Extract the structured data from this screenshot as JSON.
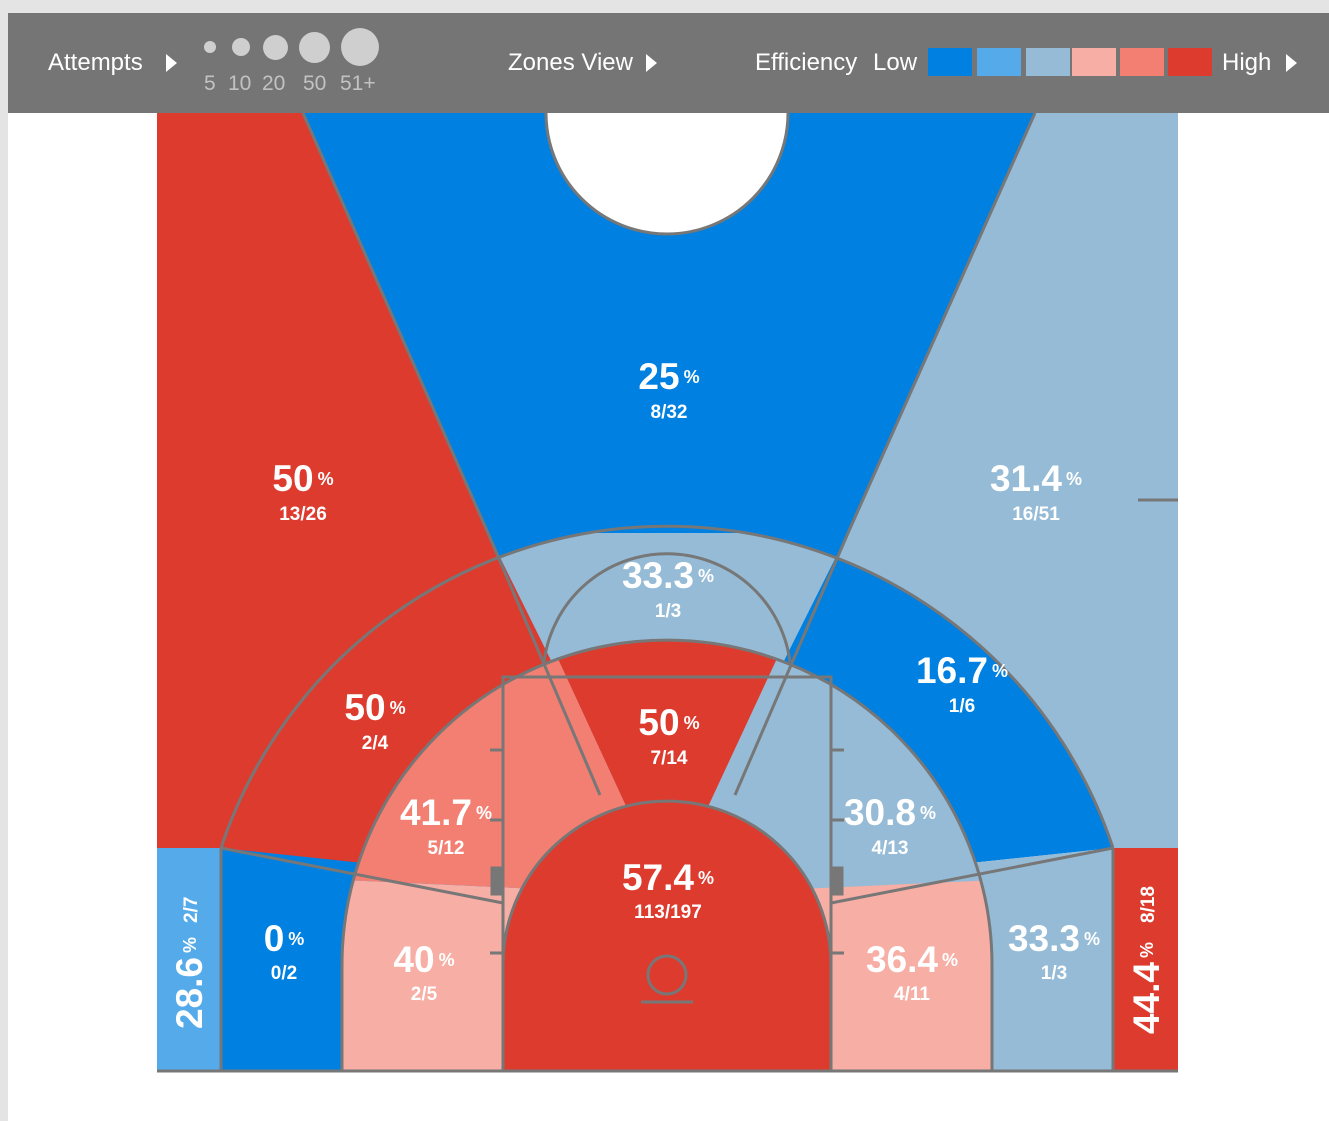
{
  "toolbar": {
    "attempts_label": "Attempts",
    "attempt_scale": [
      "5",
      "10",
      "20",
      "50",
      "51+"
    ],
    "view_label": "Zones View",
    "efficiency_label": "Efficiency",
    "low_label": "Low",
    "high_label": "High",
    "efficiency_colors": [
      "#0080e0",
      "#55aaea",
      "#95bbd6",
      "#f6aea5",
      "#f37f72",
      "#de3b2f"
    ]
  },
  "zones": {
    "above_break_left": {
      "pct": "50",
      "made_attempted": "13/26",
      "color": "#de3b2f"
    },
    "above_break_center": {
      "pct": "25",
      "made_attempted": "8/32",
      "color": "#0080e0"
    },
    "above_break_right": {
      "pct": "31.4",
      "made_attempted": "16/51",
      "color": "#95bbd6"
    },
    "corner_left": {
      "pct": "28.6",
      "made_attempted": "2/7",
      "color": "#55aaea"
    },
    "corner_right": {
      "pct": "44.4",
      "made_attempted": "8/18",
      "color": "#de3b2f"
    },
    "long_mid_left_wing": {
      "pct": "50",
      "made_attempted": "2/4",
      "color": "#de3b2f"
    },
    "long_mid_center": {
      "pct": "33.3",
      "made_attempted": "1/3",
      "color": "#95bbd6"
    },
    "long_mid_right_wing": {
      "pct": "16.7",
      "made_attempted": "1/6",
      "color": "#0080e0"
    },
    "long_mid_left_baseline": {
      "pct": "0",
      "made_attempted": "0/2",
      "color": "#0080e0"
    },
    "long_mid_right_baseline": {
      "pct": "33.3",
      "made_attempted": "1/3",
      "color": "#95bbd6"
    },
    "short_mid_center": {
      "pct": "50",
      "made_attempted": "7/14",
      "color": "#de3b2f"
    },
    "short_mid_left_wing": {
      "pct": "41.7",
      "made_attempted": "5/12",
      "color": "#f37f72"
    },
    "short_mid_right_wing": {
      "pct": "30.8",
      "made_attempted": "4/13",
      "color": "#95bbd6"
    },
    "short_mid_left_baseline": {
      "pct": "40",
      "made_attempted": "2/5",
      "color": "#f6aea5"
    },
    "short_mid_right_baseline": {
      "pct": "36.4",
      "made_attempted": "4/11",
      "color": "#f6aea5"
    },
    "restricted_area": {
      "pct": "57.4",
      "made_attempted": "113/197",
      "color": "#de3b2f"
    }
  },
  "percent_symbol": "%",
  "court_line_color": "#777777"
}
